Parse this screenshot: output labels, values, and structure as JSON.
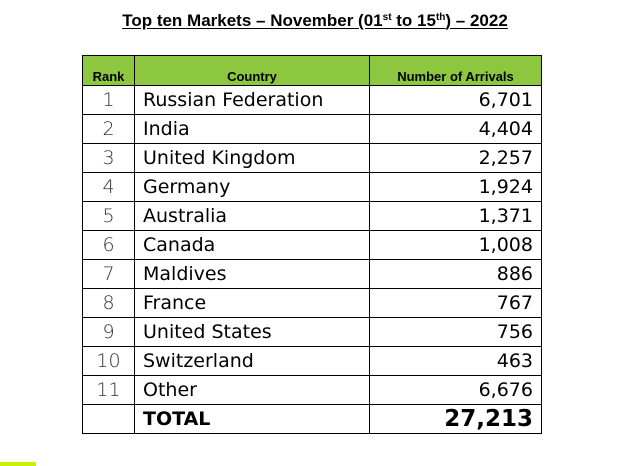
{
  "title": {
    "part1": "Top ten Markets – November (01",
    "sup1": "st",
    "part2": " to 15",
    "sup2": "th",
    "part3": ") – 2022"
  },
  "table": {
    "headers": {
      "rank": "Rank",
      "country": "Country",
      "arrivals": "Number of Arrivals"
    },
    "rows": [
      {
        "rank": "1",
        "country": "Russian Federation",
        "arrivals": "6,701"
      },
      {
        "rank": "2",
        "country": "India",
        "arrivals": "4,404"
      },
      {
        "rank": "3",
        "country": "United Kingdom",
        "arrivals": "2,257"
      },
      {
        "rank": "4",
        "country": "Germany",
        "arrivals": "1,924"
      },
      {
        "rank": "5",
        "country": "Australia",
        "arrivals": "1,371"
      },
      {
        "rank": "6",
        "country": "Canada",
        "arrivals": "1,008"
      },
      {
        "rank": "7",
        "country": "Maldives",
        "arrivals": "886"
      },
      {
        "rank": "8",
        "country": "France",
        "arrivals": "767"
      },
      {
        "rank": "9",
        "country": "United States",
        "arrivals": "756"
      },
      {
        "rank": "10",
        "country": "Switzerland",
        "arrivals": "463"
      },
      {
        "rank": "11",
        "country": "Other",
        "arrivals": "6,676"
      }
    ],
    "total": {
      "label": "TOTAL",
      "value": "27,213"
    }
  },
  "colors": {
    "header_background": "#8dc63f",
    "corner_mark": "#c8f000"
  }
}
